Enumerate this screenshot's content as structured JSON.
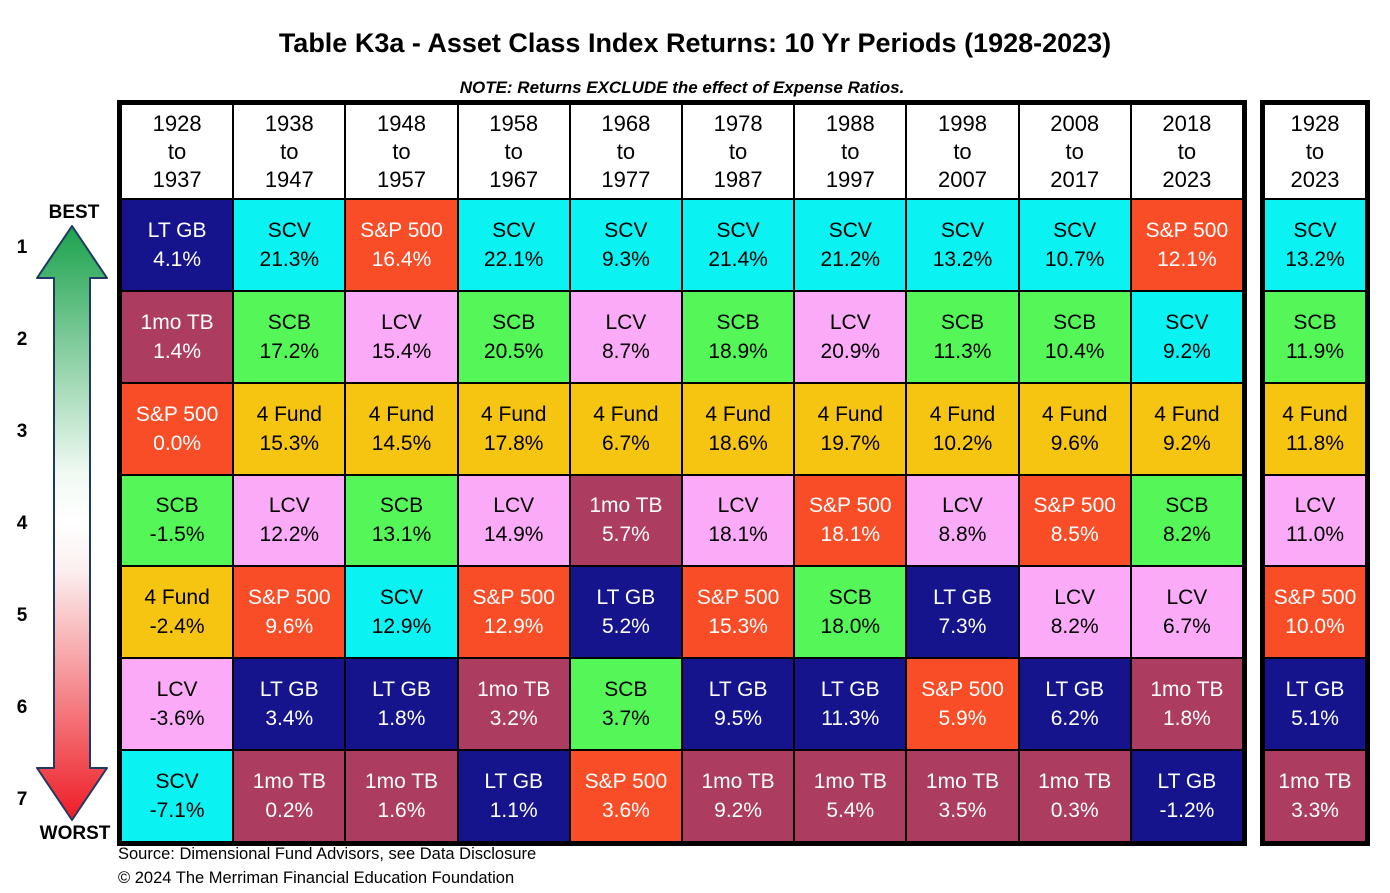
{
  "title": "Table K3a - Asset Class Index Returns: 10 Yr Periods (1928-2023)",
  "note": "NOTE: Returns EXCLUDE the effect of Expense Ratios.",
  "scale": {
    "best": "BEST",
    "worst": "WORST",
    "ranks": [
      "1",
      "2",
      "3",
      "4",
      "5",
      "6",
      "7"
    ]
  },
  "arrow_colors": {
    "top": "#1BA24C",
    "middle": "#FFFFFF",
    "bottom": "#EE1C25",
    "stroke": "#1F3864"
  },
  "asset_classes": {
    "LT GB": {
      "bg": "#15148C",
      "text": "#FFFFFF"
    },
    "SCV": {
      "bg": "#0AF2F2",
      "text": "#000000"
    },
    "S&P 500": {
      "bg": "#F94D27",
      "text": "#FFFFFF"
    },
    "1mo TB": {
      "bg": "#AC3C60",
      "text": "#FFFFFF"
    },
    "SCB": {
      "bg": "#55F657",
      "text": "#000000"
    },
    "LCV": {
      "bg": "#FAAAF6",
      "text": "#000000"
    },
    "4 Fund": {
      "bg": "#F6C512",
      "text": "#000000"
    }
  },
  "footer": {
    "source": "Source: Dimensional Fund Advisors, see Data Disclosure",
    "copyright": "© 2024 The Merriman Financial Education Foundation"
  },
  "chart_data": {
    "type": "table",
    "title": "Table K3a - Asset Class Index Returns: 10 Yr Periods (1928-2023)",
    "to_word": "to",
    "columns": [
      {
        "from": "1928",
        "to": "1937"
      },
      {
        "from": "1938",
        "to": "1947"
      },
      {
        "from": "1948",
        "to": "1957"
      },
      {
        "from": "1958",
        "to": "1967"
      },
      {
        "from": "1968",
        "to": "1977"
      },
      {
        "from": "1978",
        "to": "1987"
      },
      {
        "from": "1988",
        "to": "1997"
      },
      {
        "from": "1998",
        "to": "2007"
      },
      {
        "from": "2008",
        "to": "2017"
      },
      {
        "from": "2018",
        "to": "2023"
      }
    ],
    "summary_period": {
      "from": "1928",
      "to": "2023"
    },
    "rows": [
      {
        "rank": 1,
        "cells": [
          {
            "asset": "LT GB",
            "value": "4.1%"
          },
          {
            "asset": "SCV",
            "value": "21.3%"
          },
          {
            "asset": "S&P 500",
            "value": "16.4%"
          },
          {
            "asset": "SCV",
            "value": "22.1%"
          },
          {
            "asset": "SCV",
            "value": "9.3%"
          },
          {
            "asset": "SCV",
            "value": "21.4%"
          },
          {
            "asset": "SCV",
            "value": "21.2%"
          },
          {
            "asset": "SCV",
            "value": "13.2%"
          },
          {
            "asset": "SCV",
            "value": "10.7%"
          },
          {
            "asset": "S&P 500",
            "value": "12.1%"
          }
        ],
        "summary": {
          "asset": "SCV",
          "value": "13.2%"
        }
      },
      {
        "rank": 2,
        "cells": [
          {
            "asset": "1mo TB",
            "value": "1.4%"
          },
          {
            "asset": "SCB",
            "value": "17.2%"
          },
          {
            "asset": "LCV",
            "value": "15.4%"
          },
          {
            "asset": "SCB",
            "value": "20.5%"
          },
          {
            "asset": "LCV",
            "value": "8.7%"
          },
          {
            "asset": "SCB",
            "value": "18.9%"
          },
          {
            "asset": "LCV",
            "value": "20.9%"
          },
          {
            "asset": "SCB",
            "value": "11.3%"
          },
          {
            "asset": "SCB",
            "value": "10.4%"
          },
          {
            "asset": "SCV",
            "value": "9.2%"
          }
        ],
        "summary": {
          "asset": "SCB",
          "value": "11.9%"
        }
      },
      {
        "rank": 3,
        "cells": [
          {
            "asset": "S&P 500",
            "value": "0.0%"
          },
          {
            "asset": "4 Fund",
            "value": "15.3%"
          },
          {
            "asset": "4 Fund",
            "value": "14.5%"
          },
          {
            "asset": "4 Fund",
            "value": "17.8%"
          },
          {
            "asset": "4 Fund",
            "value": "6.7%"
          },
          {
            "asset": "4 Fund",
            "value": "18.6%"
          },
          {
            "asset": "4 Fund",
            "value": "19.7%"
          },
          {
            "asset": "4 Fund",
            "value": "10.2%"
          },
          {
            "asset": "4 Fund",
            "value": "9.6%"
          },
          {
            "asset": "4 Fund",
            "value": "9.2%"
          }
        ],
        "summary": {
          "asset": "4 Fund",
          "value": "11.8%"
        }
      },
      {
        "rank": 4,
        "cells": [
          {
            "asset": "SCB",
            "value": "-1.5%"
          },
          {
            "asset": "LCV",
            "value": "12.2%"
          },
          {
            "asset": "SCB",
            "value": "13.1%"
          },
          {
            "asset": "LCV",
            "value": "14.9%"
          },
          {
            "asset": "1mo TB",
            "value": "5.7%"
          },
          {
            "asset": "LCV",
            "value": "18.1%"
          },
          {
            "asset": "S&P 500",
            "value": "18.1%"
          },
          {
            "asset": "LCV",
            "value": "8.8%"
          },
          {
            "asset": "S&P 500",
            "value": "8.5%"
          },
          {
            "asset": "SCB",
            "value": "8.2%"
          }
        ],
        "summary": {
          "asset": "LCV",
          "value": "11.0%"
        }
      },
      {
        "rank": 5,
        "cells": [
          {
            "asset": "4 Fund",
            "value": "-2.4%"
          },
          {
            "asset": "S&P 500",
            "value": "9.6%"
          },
          {
            "asset": "SCV",
            "value": "12.9%"
          },
          {
            "asset": "S&P 500",
            "value": "12.9%"
          },
          {
            "asset": "LT GB",
            "value": "5.2%"
          },
          {
            "asset": "S&P 500",
            "value": "15.3%"
          },
          {
            "asset": "SCB",
            "value": "18.0%"
          },
          {
            "asset": "LT GB",
            "value": "7.3%"
          },
          {
            "asset": "LCV",
            "value": "8.2%"
          },
          {
            "asset": "LCV",
            "value": "6.7%"
          }
        ],
        "summary": {
          "asset": "S&P 500",
          "value": "10.0%"
        }
      },
      {
        "rank": 6,
        "cells": [
          {
            "asset": "LCV",
            "value": "-3.6%"
          },
          {
            "asset": "LT GB",
            "value": "3.4%"
          },
          {
            "asset": "LT GB",
            "value": "1.8%"
          },
          {
            "asset": "1mo TB",
            "value": "3.2%"
          },
          {
            "asset": "SCB",
            "value": "3.7%"
          },
          {
            "asset": "LT GB",
            "value": "9.5%"
          },
          {
            "asset": "LT GB",
            "value": "11.3%"
          },
          {
            "asset": "S&P 500",
            "value": "5.9%"
          },
          {
            "asset": "LT GB",
            "value": "6.2%"
          },
          {
            "asset": "1mo TB",
            "value": "1.8%"
          }
        ],
        "summary": {
          "asset": "LT GB",
          "value": "5.1%"
        }
      },
      {
        "rank": 7,
        "cells": [
          {
            "asset": "SCV",
            "value": "-7.1%"
          },
          {
            "asset": "1mo TB",
            "value": "0.2%"
          },
          {
            "asset": "1mo TB",
            "value": "1.6%"
          },
          {
            "asset": "LT GB",
            "value": "1.1%"
          },
          {
            "asset": "S&P 500",
            "value": "3.6%"
          },
          {
            "asset": "1mo TB",
            "value": "9.2%"
          },
          {
            "asset": "1mo TB",
            "value": "5.4%"
          },
          {
            "asset": "1mo TB",
            "value": "3.5%"
          },
          {
            "asset": "1mo TB",
            "value": "0.3%"
          },
          {
            "asset": "LT GB",
            "value": "-1.2%"
          }
        ],
        "summary": {
          "asset": "1mo TB",
          "value": "3.3%"
        }
      }
    ]
  }
}
